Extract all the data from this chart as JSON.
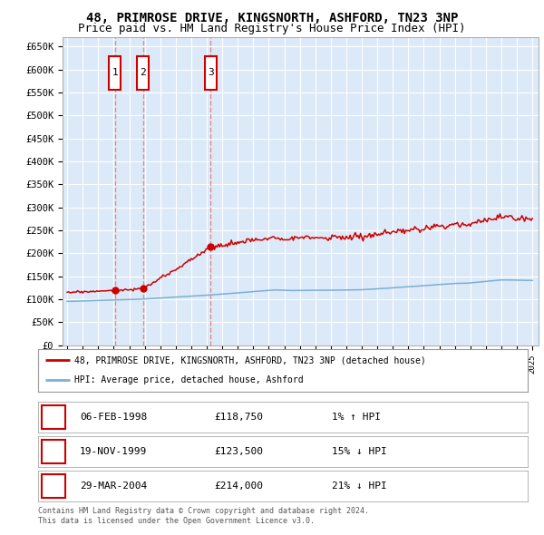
{
  "title": "48, PRIMROSE DRIVE, KINGSNORTH, ASHFORD, TN23 3NP",
  "subtitle": "Price paid vs. HM Land Registry's House Price Index (HPI)",
  "title_fontsize": 10,
  "subtitle_fontsize": 9,
  "background_color": "#ffffff",
  "plot_bg_color": "#dce9f8",
  "grid_color": "#ffffff",
  "ylim": [
    0,
    670000
  ],
  "yticks": [
    0,
    50000,
    100000,
    150000,
    200000,
    250000,
    300000,
    350000,
    400000,
    450000,
    500000,
    550000,
    600000,
    650000
  ],
  "ytick_labels": [
    "£0",
    "£50K",
    "£100K",
    "£150K",
    "£200K",
    "£250K",
    "£300K",
    "£350K",
    "£400K",
    "£450K",
    "£500K",
    "£550K",
    "£600K",
    "£650K"
  ],
  "sale_dates": [
    1998.09,
    1999.89,
    2004.24
  ],
  "sale_prices": [
    118750,
    123500,
    214000
  ],
  "sale_labels": [
    "1",
    "2",
    "3"
  ],
  "legend_line1": "48, PRIMROSE DRIVE, KINGSNORTH, ASHFORD, TN23 3NP (detached house)",
  "legend_line2": "HPI: Average price, detached house, Ashford",
  "table_rows": [
    {
      "num": "1",
      "date": "06-FEB-1998",
      "price": "£118,750",
      "hpi": "1% ↑ HPI"
    },
    {
      "num": "2",
      "date": "19-NOV-1999",
      "price": "£123,500",
      "hpi": "15% ↓ HPI"
    },
    {
      "num": "3",
      "date": "29-MAR-2004",
      "price": "£214,000",
      "hpi": "21% ↓ HPI"
    }
  ],
  "footer": "Contains HM Land Registry data © Crown copyright and database right 2024.\nThis data is licensed under the Open Government Licence v3.0.",
  "hpi_color": "#7bafd4",
  "sale_line_color": "#cc0000",
  "vline_color": "#e87878",
  "box_color": "#cc0000"
}
